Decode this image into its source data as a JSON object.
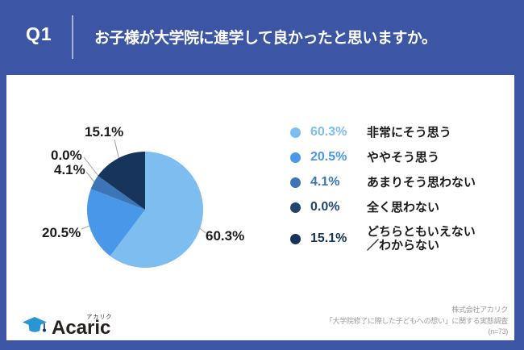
{
  "header": {
    "q_label": "Q1",
    "question": "お子様が大学院に進学して良かったと思いますか。"
  },
  "chart_data": {
    "type": "pie",
    "title": "お子様が大学院に進学して良かったと思いますか。",
    "labels": [
      "非常にそう思う",
      "ややそう思う",
      "あまりそう思わない",
      "全く思わない",
      "どちらともいえない／わからない"
    ],
    "values": [
      60.3,
      20.5,
      4.1,
      0.0,
      15.1
    ],
    "percent_labels": [
      "60.3%",
      "20.5%",
      "4.1%",
      "0.0%",
      "15.1%"
    ],
    "colors": [
      "#7EBDEF",
      "#4897E8",
      "#3D74B5",
      "#1F4671",
      "#16345C"
    ],
    "start_angle": "12-oclock",
    "direction": "clockwise",
    "sample_size_label": "(n=73)",
    "legend_position": "right"
  },
  "legend": {
    "items": [
      {
        "pct": "60.3%",
        "label": "非常にそう思う",
        "color": "#7EBDEF"
      },
      {
        "pct": "20.5%",
        "label": "ややそう思う",
        "color": "#4897E8"
      },
      {
        "pct": "4.1%",
        "label": "あまりそう思わない",
        "color": "#3D74B5"
      },
      {
        "pct": "0.0%",
        "label": "全く思わない",
        "color": "#1F4671"
      },
      {
        "pct": "15.1%",
        "label": "どちらともいえない\n／わからない",
        "color": "#16345C"
      }
    ]
  },
  "footer": {
    "logo": {
      "text": "Acaric",
      "furigana": "アカリク"
    },
    "source": [
      "株式会社アカリク",
      "「大学院修了に際した子どもへの想い」に関する実態調査",
      "(n=73)"
    ]
  },
  "theme": {
    "frame_blue": "#3C55A5",
    "header_text": "#FFFFFF",
    "label_dark": "#1B1B1B",
    "source_gray": "#999999",
    "leader_gray": "#9AA0A6",
    "logo_cap_blue": "#2896D3",
    "logo_tassel_navy": "#16345C",
    "logo_text_dark": "#26211E"
  }
}
